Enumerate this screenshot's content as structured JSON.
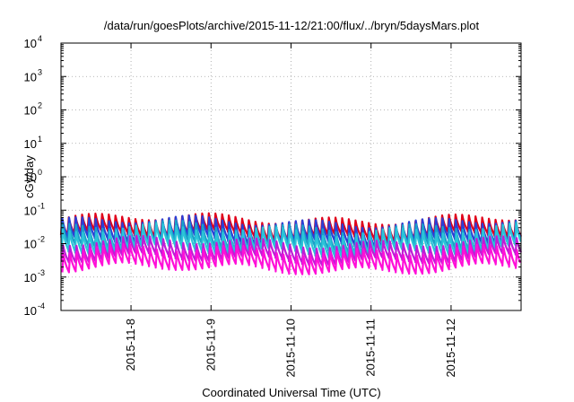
{
  "chart_data": {
    "type": "line",
    "title": "/data/run/goesPlots/archive/2015-11-12/21:00/flux/../bryn/5daysMars.plot",
    "xlabel": "Coordinated Universal Time (UTC)",
    "ylabel": "cGy/day",
    "yscale": "log",
    "ylim": [
      0.0001,
      10000
    ],
    "xlim": [
      "2015-11-07 03:00",
      "2015-11-12 21:00"
    ],
    "x_ticks": [
      "2015-11-8",
      "2015-11-9",
      "2015-11-10",
      "2015-11-11",
      "2015-11-12"
    ],
    "y_ticks": [
      {
        "base": "10",
        "exp": "-4"
      },
      {
        "base": "10",
        "exp": "-3"
      },
      {
        "base": "10",
        "exp": "-2"
      },
      {
        "base": "10",
        "exp": "-1"
      },
      {
        "base": "10",
        "exp": "0"
      },
      {
        "base": "10",
        "exp": "1"
      },
      {
        "base": "10",
        "exp": "2"
      },
      {
        "base": "10",
        "exp": "3"
      },
      {
        "base": "10",
        "exp": "4"
      }
    ],
    "grid": true,
    "legend": "none",
    "pattern": {
      "period_hours": 2.0,
      "cycles": 69
    },
    "series": [
      {
        "color": "#e0001a",
        "peak": 0.06,
        "trough": 0.018
      },
      {
        "color": "#2a3fd6",
        "peak": 0.05,
        "trough": 0.012
      },
      {
        "color": "#1aa0c8",
        "peak": 0.035,
        "trough": 0.008
      },
      {
        "color": "#2bc4d8",
        "peak": 0.028,
        "trough": 0.006
      },
      {
        "color": "#c01cd6",
        "peak": 0.012,
        "trough": 0.0035
      },
      {
        "color": "#ff10d8",
        "peak": 0.007,
        "trough": 0.0018
      }
    ]
  }
}
